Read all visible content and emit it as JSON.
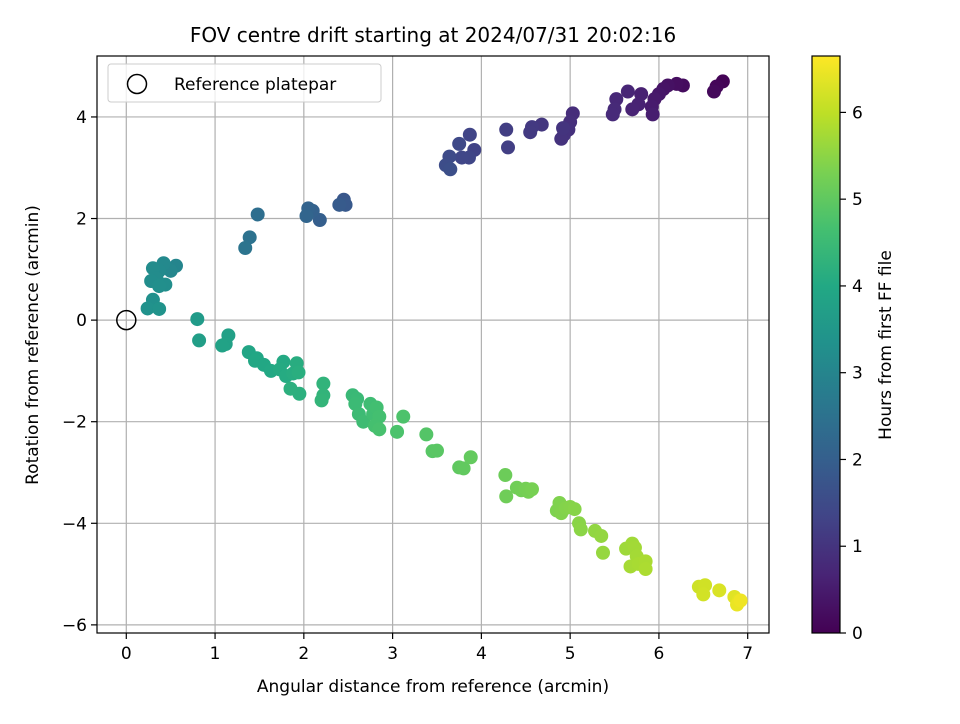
{
  "chart_data": {
    "type": "scatter",
    "title": "FOV centre drift starting at 2024/07/31 20:02:16",
    "xlabel": "Angular distance from reference (arcmin)",
    "ylabel": "Rotation from reference (arcmin)",
    "xlim": [
      -0.33,
      7.24
    ],
    "ylim": [
      -6.16,
      5.2
    ],
    "xticks": [
      "0",
      "1",
      "2",
      "3",
      "4",
      "5",
      "6",
      "7"
    ],
    "xtick_values": [
      0,
      1,
      2,
      3,
      4,
      5,
      6,
      7
    ],
    "yticks": [
      "−6",
      "−4",
      "−2",
      "0",
      "2",
      "4"
    ],
    "ytick_values": [
      -6,
      -4,
      -2,
      0,
      2,
      4
    ],
    "grid": true,
    "legend": {
      "placement": "top-left",
      "entries": [
        {
          "label": "Reference platepar",
          "marker": "open-circle"
        }
      ]
    },
    "reference_point": {
      "x": 0,
      "y": 0
    },
    "colorbar": {
      "label": "Hours from first FF file",
      "range": [
        0,
        6.65
      ],
      "ticks": [
        "0",
        "1",
        "2",
        "3",
        "4",
        "5",
        "6"
      ],
      "tick_values": [
        0,
        1,
        2,
        3,
        4,
        5,
        6
      ],
      "colormap": "viridis"
    },
    "points": [
      {
        "x": 6.72,
        "y": 4.7,
        "h": 0.05
      },
      {
        "x": 6.65,
        "y": 4.6,
        "h": 0.1
      },
      {
        "x": 6.62,
        "y": 4.5,
        "h": 0.15
      },
      {
        "x": 6.27,
        "y": 4.62,
        "h": 0.2
      },
      {
        "x": 6.2,
        "y": 4.65,
        "h": 0.25
      },
      {
        "x": 6.1,
        "y": 4.62,
        "h": 0.3
      },
      {
        "x": 6.05,
        "y": 4.55,
        "h": 0.35
      },
      {
        "x": 6.0,
        "y": 4.45,
        "h": 0.4
      },
      {
        "x": 5.95,
        "y": 4.35,
        "h": 0.45
      },
      {
        "x": 5.92,
        "y": 4.2,
        "h": 0.5
      },
      {
        "x": 5.93,
        "y": 4.05,
        "h": 0.55
      },
      {
        "x": 5.8,
        "y": 4.45,
        "h": 0.6
      },
      {
        "x": 5.77,
        "y": 4.25,
        "h": 0.62
      },
      {
        "x": 5.7,
        "y": 4.15,
        "h": 0.65
      },
      {
        "x": 5.65,
        "y": 4.5,
        "h": 0.7
      },
      {
        "x": 5.52,
        "y": 4.35,
        "h": 0.75
      },
      {
        "x": 5.5,
        "y": 4.15,
        "h": 0.78
      },
      {
        "x": 5.48,
        "y": 4.05,
        "h": 0.8
      },
      {
        "x": 5.03,
        "y": 4.07,
        "h": 0.85
      },
      {
        "x": 5.0,
        "y": 3.9,
        "h": 0.9
      },
      {
        "x": 4.98,
        "y": 3.75,
        "h": 0.92
      },
      {
        "x": 4.93,
        "y": 3.65,
        "h": 0.95
      },
      {
        "x": 4.9,
        "y": 3.57,
        "h": 0.97
      },
      {
        "x": 4.92,
        "y": 3.78,
        "h": 1.0
      },
      {
        "x": 4.68,
        "y": 3.85,
        "h": 1.05
      },
      {
        "x": 4.57,
        "y": 3.8,
        "h": 1.1
      },
      {
        "x": 4.55,
        "y": 3.7,
        "h": 1.12
      },
      {
        "x": 4.28,
        "y": 3.75,
        "h": 1.2
      },
      {
        "x": 4.3,
        "y": 3.4,
        "h": 1.22
      },
      {
        "x": 3.92,
        "y": 3.35,
        "h": 1.3
      },
      {
        "x": 3.87,
        "y": 3.65,
        "h": 1.35
      },
      {
        "x": 3.86,
        "y": 3.2,
        "h": 1.38
      },
      {
        "x": 3.78,
        "y": 3.2,
        "h": 1.4
      },
      {
        "x": 3.75,
        "y": 3.47,
        "h": 1.45
      },
      {
        "x": 3.64,
        "y": 3.22,
        "h": 1.5
      },
      {
        "x": 3.6,
        "y": 3.05,
        "h": 1.55
      },
      {
        "x": 3.65,
        "y": 2.97,
        "h": 1.6
      },
      {
        "x": 2.45,
        "y": 2.37,
        "h": 1.8
      },
      {
        "x": 2.47,
        "y": 2.27,
        "h": 1.85
      },
      {
        "x": 2.4,
        "y": 2.27,
        "h": 1.9
      },
      {
        "x": 2.18,
        "y": 1.97,
        "h": 2.0
      },
      {
        "x": 2.1,
        "y": 2.15,
        "h": 2.05
      },
      {
        "x": 2.05,
        "y": 2.2,
        "h": 2.1
      },
      {
        "x": 2.03,
        "y": 2.05,
        "h": 2.15
      },
      {
        "x": 1.48,
        "y": 2.08,
        "h": 2.4
      },
      {
        "x": 1.39,
        "y": 1.63,
        "h": 2.5
      },
      {
        "x": 1.34,
        "y": 1.42,
        "h": 2.55
      },
      {
        "x": 0.56,
        "y": 1.07,
        "h": 3.0
      },
      {
        "x": 0.5,
        "y": 0.97,
        "h": 3.05
      },
      {
        "x": 0.42,
        "y": 1.12,
        "h": 3.1
      },
      {
        "x": 0.37,
        "y": 0.97,
        "h": 3.15
      },
      {
        "x": 0.3,
        "y": 1.02,
        "h": 3.18
      },
      {
        "x": 0.34,
        "y": 0.82,
        "h": 3.2
      },
      {
        "x": 0.28,
        "y": 0.77,
        "h": 3.22
      },
      {
        "x": 0.44,
        "y": 0.7,
        "h": 3.25
      },
      {
        "x": 0.37,
        "y": 0.67,
        "h": 3.28
      },
      {
        "x": 0.3,
        "y": 0.4,
        "h": 3.3
      },
      {
        "x": 0.24,
        "y": 0.23,
        "h": 3.35
      },
      {
        "x": 0.37,
        "y": 0.22,
        "h": 3.38
      },
      {
        "x": 0.8,
        "y": 0.02,
        "h": 3.6
      },
      {
        "x": 0.82,
        "y": -0.4,
        "h": 3.7
      },
      {
        "x": 1.15,
        "y": -0.3,
        "h": 3.75
      },
      {
        "x": 1.12,
        "y": -0.47,
        "h": 3.8
      },
      {
        "x": 1.08,
        "y": -0.5,
        "h": 3.82
      },
      {
        "x": 1.38,
        "y": -0.63,
        "h": 3.9
      },
      {
        "x": 1.47,
        "y": -0.75,
        "h": 3.92
      },
      {
        "x": 1.45,
        "y": -0.8,
        "h": 3.95
      },
      {
        "x": 1.55,
        "y": -0.88,
        "h": 3.97
      },
      {
        "x": 1.63,
        "y": -1.0,
        "h": 4.0
      },
      {
        "x": 1.77,
        "y": -0.82,
        "h": 4.02
      },
      {
        "x": 1.73,
        "y": -0.97,
        "h": 4.05
      },
      {
        "x": 1.8,
        "y": -1.1,
        "h": 4.07
      },
      {
        "x": 1.88,
        "y": -1.05,
        "h": 4.1
      },
      {
        "x": 1.92,
        "y": -0.85,
        "h": 4.12
      },
      {
        "x": 1.94,
        "y": -1.03,
        "h": 4.15
      },
      {
        "x": 1.95,
        "y": -1.45,
        "h": 4.18
      },
      {
        "x": 1.85,
        "y": -1.35,
        "h": 4.2
      },
      {
        "x": 2.22,
        "y": -1.25,
        "h": 4.3
      },
      {
        "x": 2.22,
        "y": -1.48,
        "h": 4.32
      },
      {
        "x": 2.2,
        "y": -1.58,
        "h": 4.35
      },
      {
        "x": 2.55,
        "y": -1.48,
        "h": 4.45
      },
      {
        "x": 2.6,
        "y": -1.55,
        "h": 4.47
      },
      {
        "x": 2.58,
        "y": -1.65,
        "h": 4.5
      },
      {
        "x": 2.62,
        "y": -1.85,
        "h": 4.52
      },
      {
        "x": 2.67,
        "y": -2.0,
        "h": 4.55
      },
      {
        "x": 2.75,
        "y": -1.65,
        "h": 4.57
      },
      {
        "x": 2.78,
        "y": -1.85,
        "h": 4.6
      },
      {
        "x": 2.82,
        "y": -1.72,
        "h": 4.62
      },
      {
        "x": 2.85,
        "y": -1.9,
        "h": 4.65
      },
      {
        "x": 2.8,
        "y": -2.08,
        "h": 4.67
      },
      {
        "x": 2.85,
        "y": -2.15,
        "h": 4.7
      },
      {
        "x": 3.05,
        "y": -2.2,
        "h": 4.75
      },
      {
        "x": 3.12,
        "y": -1.9,
        "h": 4.77
      },
      {
        "x": 3.38,
        "y": -2.25,
        "h": 4.85
      },
      {
        "x": 3.45,
        "y": -2.58,
        "h": 4.9
      },
      {
        "x": 3.5,
        "y": -2.57,
        "h": 4.92
      },
      {
        "x": 3.75,
        "y": -2.9,
        "h": 5.0
      },
      {
        "x": 3.8,
        "y": -2.92,
        "h": 5.02
      },
      {
        "x": 3.88,
        "y": -2.7,
        "h": 5.05
      },
      {
        "x": 4.27,
        "y": -3.05,
        "h": 5.15
      },
      {
        "x": 4.28,
        "y": -3.47,
        "h": 5.18
      },
      {
        "x": 4.4,
        "y": -3.3,
        "h": 5.2
      },
      {
        "x": 4.45,
        "y": -3.35,
        "h": 5.22
      },
      {
        "x": 4.5,
        "y": -3.32,
        "h": 5.24
      },
      {
        "x": 4.53,
        "y": -3.38,
        "h": 5.26
      },
      {
        "x": 4.57,
        "y": -3.33,
        "h": 5.28
      },
      {
        "x": 4.85,
        "y": -3.75,
        "h": 5.35
      },
      {
        "x": 4.88,
        "y": -3.6,
        "h": 5.37
      },
      {
        "x": 4.9,
        "y": -3.8,
        "h": 5.39
      },
      {
        "x": 4.95,
        "y": -3.7,
        "h": 5.41
      },
      {
        "x": 5.0,
        "y": -3.68,
        "h": 5.43
      },
      {
        "x": 5.05,
        "y": -3.72,
        "h": 5.45
      },
      {
        "x": 5.1,
        "y": -4.0,
        "h": 5.47
      },
      {
        "x": 5.12,
        "y": -4.12,
        "h": 5.49
      },
      {
        "x": 5.28,
        "y": -4.15,
        "h": 5.55
      },
      {
        "x": 5.35,
        "y": -4.25,
        "h": 5.57
      },
      {
        "x": 5.37,
        "y": -4.58,
        "h": 5.6
      },
      {
        "x": 5.63,
        "y": -4.5,
        "h": 5.68
      },
      {
        "x": 5.7,
        "y": -4.4,
        "h": 5.7
      },
      {
        "x": 5.73,
        "y": -4.48,
        "h": 5.72
      },
      {
        "x": 5.75,
        "y": -4.65,
        "h": 5.74
      },
      {
        "x": 5.68,
        "y": -4.85,
        "h": 5.76
      },
      {
        "x": 5.77,
        "y": -4.8,
        "h": 5.78
      },
      {
        "x": 5.85,
        "y": -4.75,
        "h": 5.8
      },
      {
        "x": 5.85,
        "y": -4.9,
        "h": 5.82
      },
      {
        "x": 6.45,
        "y": -5.25,
        "h": 6.15
      },
      {
        "x": 6.52,
        "y": -5.22,
        "h": 6.18
      },
      {
        "x": 6.5,
        "y": -5.4,
        "h": 6.2
      },
      {
        "x": 6.68,
        "y": -5.32,
        "h": 6.28
      },
      {
        "x": 6.85,
        "y": -5.45,
        "h": 6.35
      },
      {
        "x": 6.9,
        "y": -5.52,
        "h": 6.4
      },
      {
        "x": 6.88,
        "y": -5.6,
        "h": 6.45
      },
      {
        "x": 6.92,
        "y": -5.52,
        "h": 6.5
      }
    ]
  }
}
